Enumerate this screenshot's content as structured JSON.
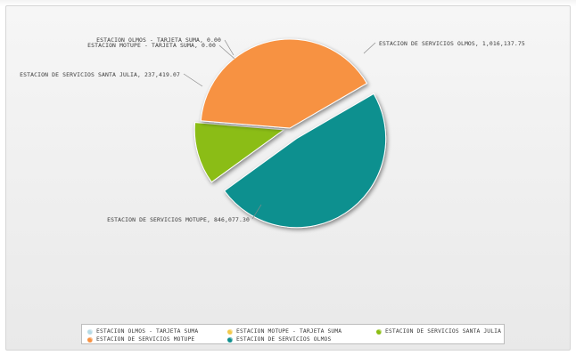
{
  "chart_data": {
    "type": "pie",
    "title": "",
    "slices": [
      {
        "name": "ESTACION OLMOS - TARJETA SUMA",
        "value": 0.0,
        "label": "ESTACION OLMOS - TARJETA SUMA, 0.00",
        "color": "#b7dbe6"
      },
      {
        "name": "ESTACION MOTUPE - TARJETA SUMA",
        "value": 0.0,
        "label": "ESTACION MOTUPE - TARJETA SUMA, 0.00",
        "color": "#f2c94c"
      },
      {
        "name": "ESTACION DE SERVICIOS SANTA JULIA",
        "value": 237419.07,
        "label": "ESTACION DE SERVICIOS SANTA JULIA, 237,419.07",
        "color": "#8bbd13"
      },
      {
        "name": "ESTACION DE SERVICIOS MOTUPE",
        "value": 846077.3,
        "label": "ESTACION DE SERVICIOS MOTUPE, 846,077.30",
        "color": "#f79243"
      },
      {
        "name": "ESTACION DE SERVICIOS OLMOS",
        "value": 1016137.75,
        "label": "ESTACION DE SERVICIOS OLMOS, 1,016,137.75",
        "color": "#11908f"
      }
    ],
    "legend": "bottom",
    "legend_entries": [
      "ESTACION OLMOS - TARJETA SUMA",
      "ESTACION MOTUPE - TARJETA SUMA",
      "ESTACION DE SERVICIOS SANTA JULIA",
      "ESTACION DE SERVICIOS MOTUPE",
      "ESTACION DE SERVICIOS OLMOS"
    ]
  }
}
